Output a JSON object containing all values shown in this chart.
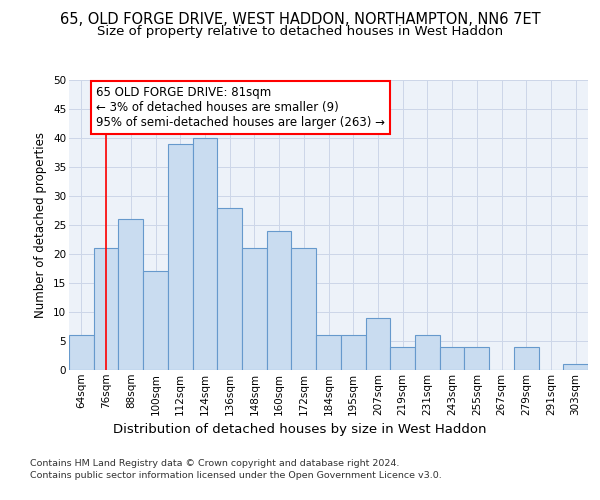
{
  "title": "65, OLD FORGE DRIVE, WEST HADDON, NORTHAMPTON, NN6 7ET",
  "subtitle": "Size of property relative to detached houses in West Haddon",
  "xlabel": "Distribution of detached houses by size in West Haddon",
  "ylabel": "Number of detached properties",
  "categories": [
    "64sqm",
    "76sqm",
    "88sqm",
    "100sqm",
    "112sqm",
    "124sqm",
    "136sqm",
    "148sqm",
    "160sqm",
    "172sqm",
    "184sqm",
    "195sqm",
    "207sqm",
    "219sqm",
    "231sqm",
    "243sqm",
    "255sqm",
    "267sqm",
    "279sqm",
    "291sqm",
    "303sqm"
  ],
  "values": [
    6,
    21,
    26,
    17,
    39,
    40,
    28,
    21,
    24,
    21,
    6,
    6,
    9,
    4,
    6,
    4,
    4,
    0,
    4,
    0,
    1
  ],
  "bar_color": "#c9dcf0",
  "bar_edge_color": "#6699cc",
  "grid_color": "#ccd6e8",
  "background_color": "#edf2f9",
  "annotation_line1": "65 OLD FORGE DRIVE: 81sqm",
  "annotation_line2": "← 3% of detached houses are smaller (9)",
  "annotation_line3": "95% of semi-detached houses are larger (263) →",
  "annotation_box_color": "white",
  "annotation_box_edge_color": "red",
  "property_line_x": 1,
  "ylim": [
    0,
    50
  ],
  "yticks": [
    0,
    5,
    10,
    15,
    20,
    25,
    30,
    35,
    40,
    45,
    50
  ],
  "footer_line1": "Contains HM Land Registry data © Crown copyright and database right 2024.",
  "footer_line2": "Contains public sector information licensed under the Open Government Licence v3.0.",
  "title_fontsize": 10.5,
  "subtitle_fontsize": 9.5,
  "ylabel_fontsize": 8.5,
  "xlabel_fontsize": 9.5,
  "tick_fontsize": 7.5,
  "annotation_fontsize": 8.5,
  "footer_fontsize": 6.8
}
